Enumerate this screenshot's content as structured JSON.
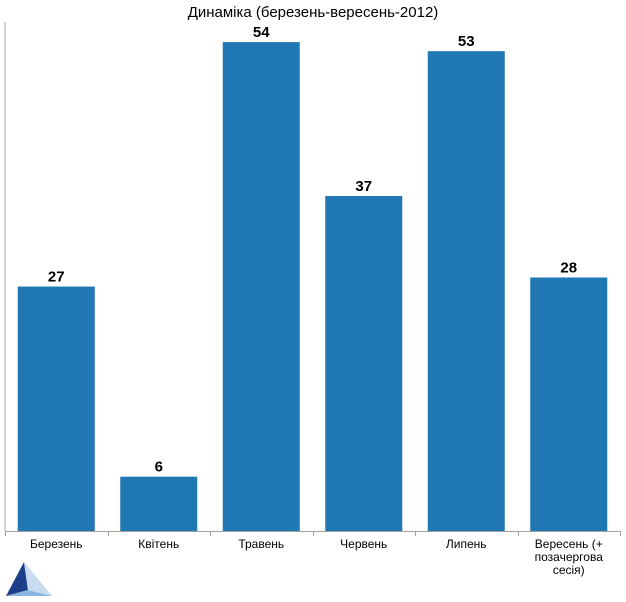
{
  "chart_data": {
    "type": "bar",
    "title": "Динаміка (березень-вересень-2012)",
    "categories": [
      "Березень",
      "Квітень",
      "Травень",
      "Червень",
      "Липень",
      "Вересень  (+ позачергова сесія)"
    ],
    "values": [
      27,
      6,
      54,
      37,
      53,
      28
    ],
    "xlabel": "",
    "ylabel": "",
    "ylim": [
      0,
      56
    ],
    "grid": false,
    "legend": "none",
    "bar_color": "#1f77b4",
    "axis_color": "#a0a0a0"
  },
  "logo": {
    "name": "triangle-logo-icon",
    "color_dark": "#1c3f8c",
    "color_light": "#8ab4e0"
  }
}
